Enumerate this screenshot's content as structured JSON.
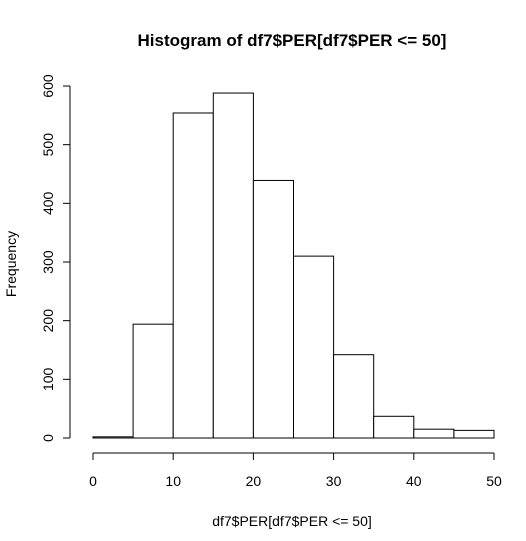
{
  "chart_data": {
    "type": "histogram",
    "title": "Histogram of df7$PER[df7$PER <= 50]",
    "x_label": "df7$PER[df7$PER <= 50]",
    "y_label": "Frequency",
    "bins": [
      0,
      5,
      10,
      15,
      20,
      25,
      30,
      35,
      40,
      45,
      50
    ],
    "values": [
      2,
      194,
      554,
      588,
      439,
      310,
      142,
      37,
      15,
      13
    ],
    "color": "#ffffff",
    "xlim": [
      0,
      50
    ],
    "xticks": [
      0,
      10,
      20,
      30,
      40,
      50
    ],
    "ylim": [
      0,
      600
    ],
    "yticks": [
      0,
      100,
      200,
      300,
      400,
      500,
      600
    ]
  }
}
